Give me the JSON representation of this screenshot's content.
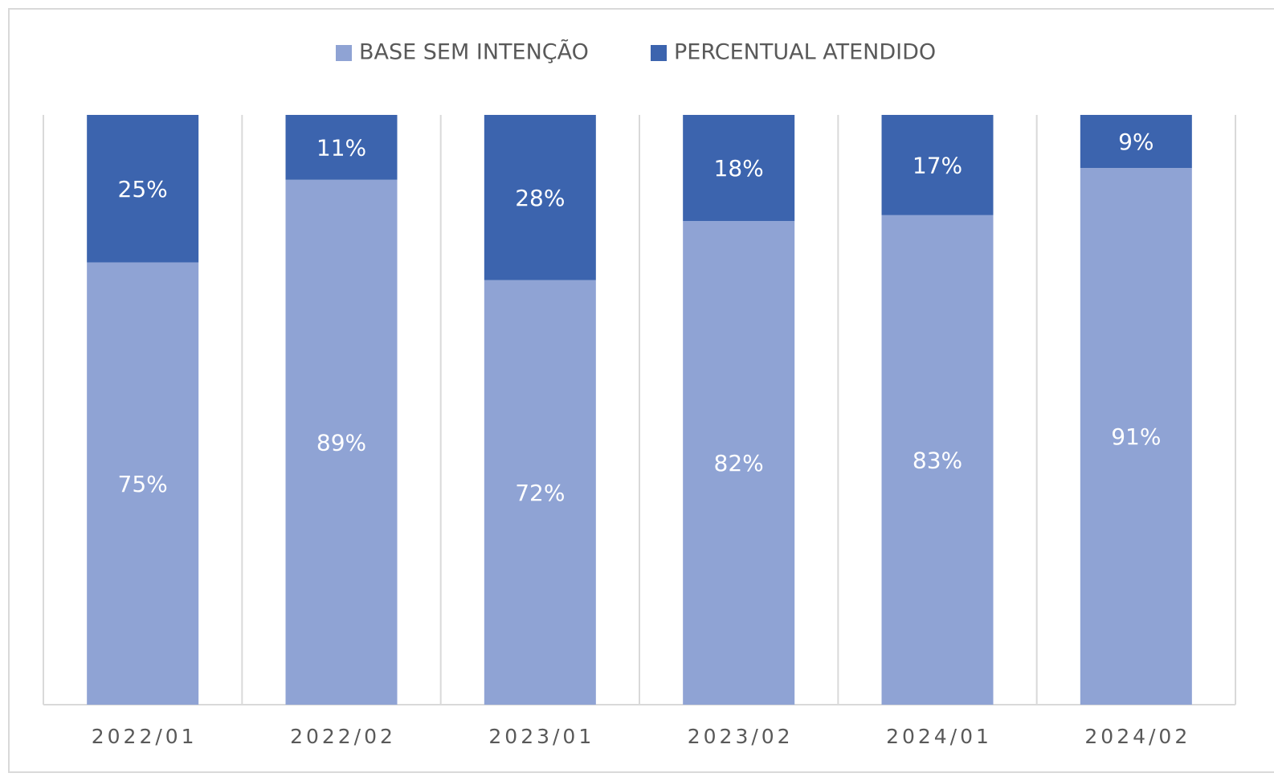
{
  "chart_data": {
    "type": "stacked_bar",
    "categories": [
      "2022/01",
      "2022/02",
      "2023/01",
      "2023/02",
      "2024/01",
      "2024/02"
    ],
    "series": [
      {
        "name": "BASE SEM INTENÇÃO",
        "color": "#8fa3d4",
        "values": [
          75,
          89,
          72,
          82,
          83,
          91
        ],
        "value_labels": [
          "75%",
          "89%",
          "72%",
          "82%",
          "83%",
          "91%"
        ]
      },
      {
        "name": "PERCENTUAL ATENDIDO",
        "color": "#3c64ae",
        "values": [
          25,
          11,
          28,
          18,
          17,
          9
        ],
        "value_labels": [
          "25%",
          "11%",
          "28%",
          "18%",
          "17%",
          "9%"
        ]
      }
    ],
    "ylim": [
      0,
      100
    ],
    "legend": "top"
  }
}
